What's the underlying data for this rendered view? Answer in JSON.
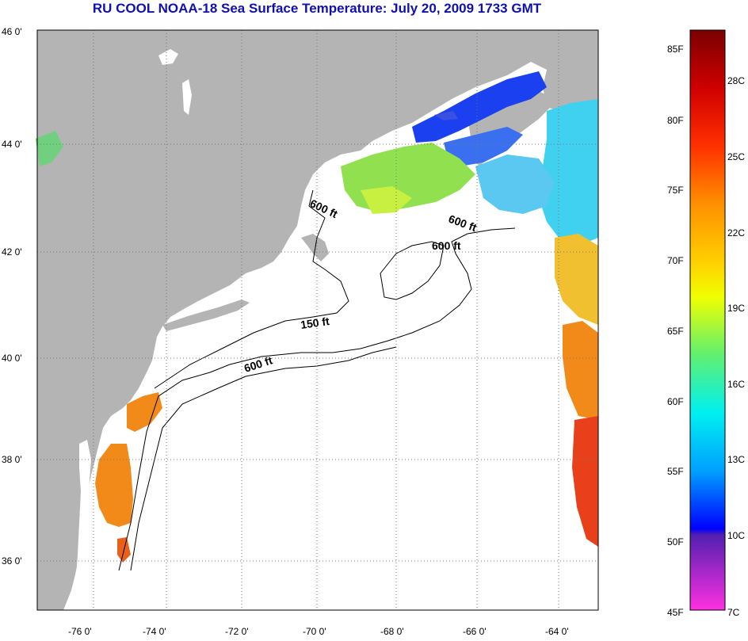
{
  "title": "RU COOL  NOAA-18  Sea Surface Temperature:  July 20, 2009 1733 GMT",
  "lat_labels": [
    "46 0'",
    "44 0'",
    "42 0'",
    "40 0'",
    "38 0'",
    "36 0'"
  ],
  "lon_labels": [
    "-76 0'",
    "-74 0'",
    "-72 0'",
    "-70 0'",
    "-68 0'",
    "-66 0'",
    "-64 0'"
  ],
  "contours": [
    {
      "label": "600 ft"
    },
    {
      "label": "600 ft"
    },
    {
      "label": "600 ft"
    },
    {
      "label": "150 ft"
    },
    {
      "label": "600 ft"
    }
  ],
  "colorbar": {
    "fahrenheit": [
      "85F",
      "80F",
      "75F",
      "70F",
      "65F",
      "60F",
      "55F",
      "50F",
      "45F"
    ],
    "celsius": [
      "28C",
      "25C",
      "22C",
      "19C",
      "16C",
      "13C",
      "10C",
      "7C"
    ]
  },
  "colors": {
    "land": "#b4b4b4",
    "ocean": "#ffffff",
    "title": "#1010b0",
    "warm_sst": "#f28a1a",
    "hot_sst": "#e8401a",
    "cold_sst": "#1a40f0",
    "cool_sst": "#40d0f0",
    "mid_sst": "#90e050"
  }
}
